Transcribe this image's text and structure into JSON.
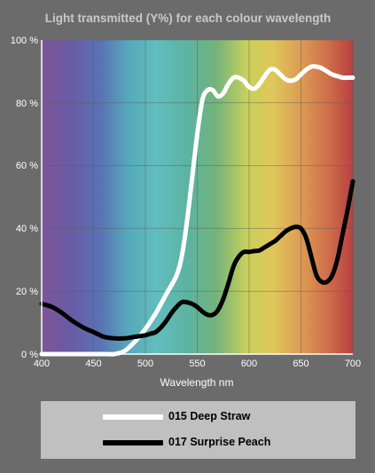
{
  "chart_data": {
    "type": "line",
    "title": "Light transmitted (Y%) for each colour wavelength",
    "xlabel": "Wavelength nm",
    "ylabel": "",
    "xlim": [
      400,
      700
    ],
    "ylim": [
      0,
      100
    ],
    "x_ticks": [
      "400",
      "450",
      "500",
      "550",
      "600",
      "650",
      "700"
    ],
    "y_ticks": [
      "0 %",
      "20 %",
      "40 %",
      "60 %",
      "80 %",
      "100 %"
    ],
    "grid": true,
    "background": "visible spectrum gradient",
    "legend_position": "bottom",
    "series": [
      {
        "name": "015 Deep Straw",
        "color": "#ffffff",
        "x": [
          400,
          460,
          470,
          480,
          490,
          500,
          510,
          520,
          530,
          535,
          540,
          545,
          550,
          555,
          560,
          565,
          570,
          575,
          580,
          585,
          590,
          595,
          600,
          605,
          610,
          615,
          620,
          625,
          630,
          635,
          640,
          645,
          650,
          655,
          660,
          665,
          670,
          675,
          680,
          685,
          690,
          695,
          700
        ],
        "values": [
          0,
          0,
          0,
          1,
          4,
          8,
          13,
          19,
          25,
          31,
          42,
          56,
          70,
          81,
          84,
          84,
          82,
          83,
          86,
          88,
          88,
          87,
          85,
          84.5,
          86,
          88.5,
          90.5,
          90.5,
          89,
          87.5,
          87,
          87.5,
          89,
          90.5,
          91.5,
          91.5,
          91,
          90,
          89,
          88.5,
          88,
          88,
          88
        ]
      },
      {
        "name": "017 Surprise Peach",
        "color": "#000000",
        "x": [
          400,
          410,
          420,
          430,
          440,
          450,
          460,
          470,
          480,
          490,
          500,
          505,
          510,
          515,
          520,
          525,
          530,
          535,
          540,
          545,
          550,
          555,
          560,
          565,
          570,
          575,
          580,
          585,
          590,
          595,
          600,
          605,
          610,
          615,
          620,
          625,
          630,
          635,
          640,
          645,
          650,
          655,
          660,
          665,
          670,
          675,
          680,
          685,
          690,
          695,
          700
        ],
        "values": [
          16,
          15,
          13,
          10.5,
          8.5,
          7,
          5.5,
          5,
          5,
          5.5,
          6,
          6.5,
          7,
          8.5,
          10.5,
          13,
          15,
          16.5,
          16.5,
          16,
          15,
          13.5,
          12.5,
          12.5,
          14,
          17.5,
          22.5,
          28,
          31,
          32.5,
          32.5,
          32.8,
          33,
          34,
          35,
          36,
          37.5,
          39,
          40,
          40.5,
          40,
          37,
          31,
          25,
          23,
          23,
          25,
          30,
          38,
          46,
          55
        ]
      }
    ]
  }
}
